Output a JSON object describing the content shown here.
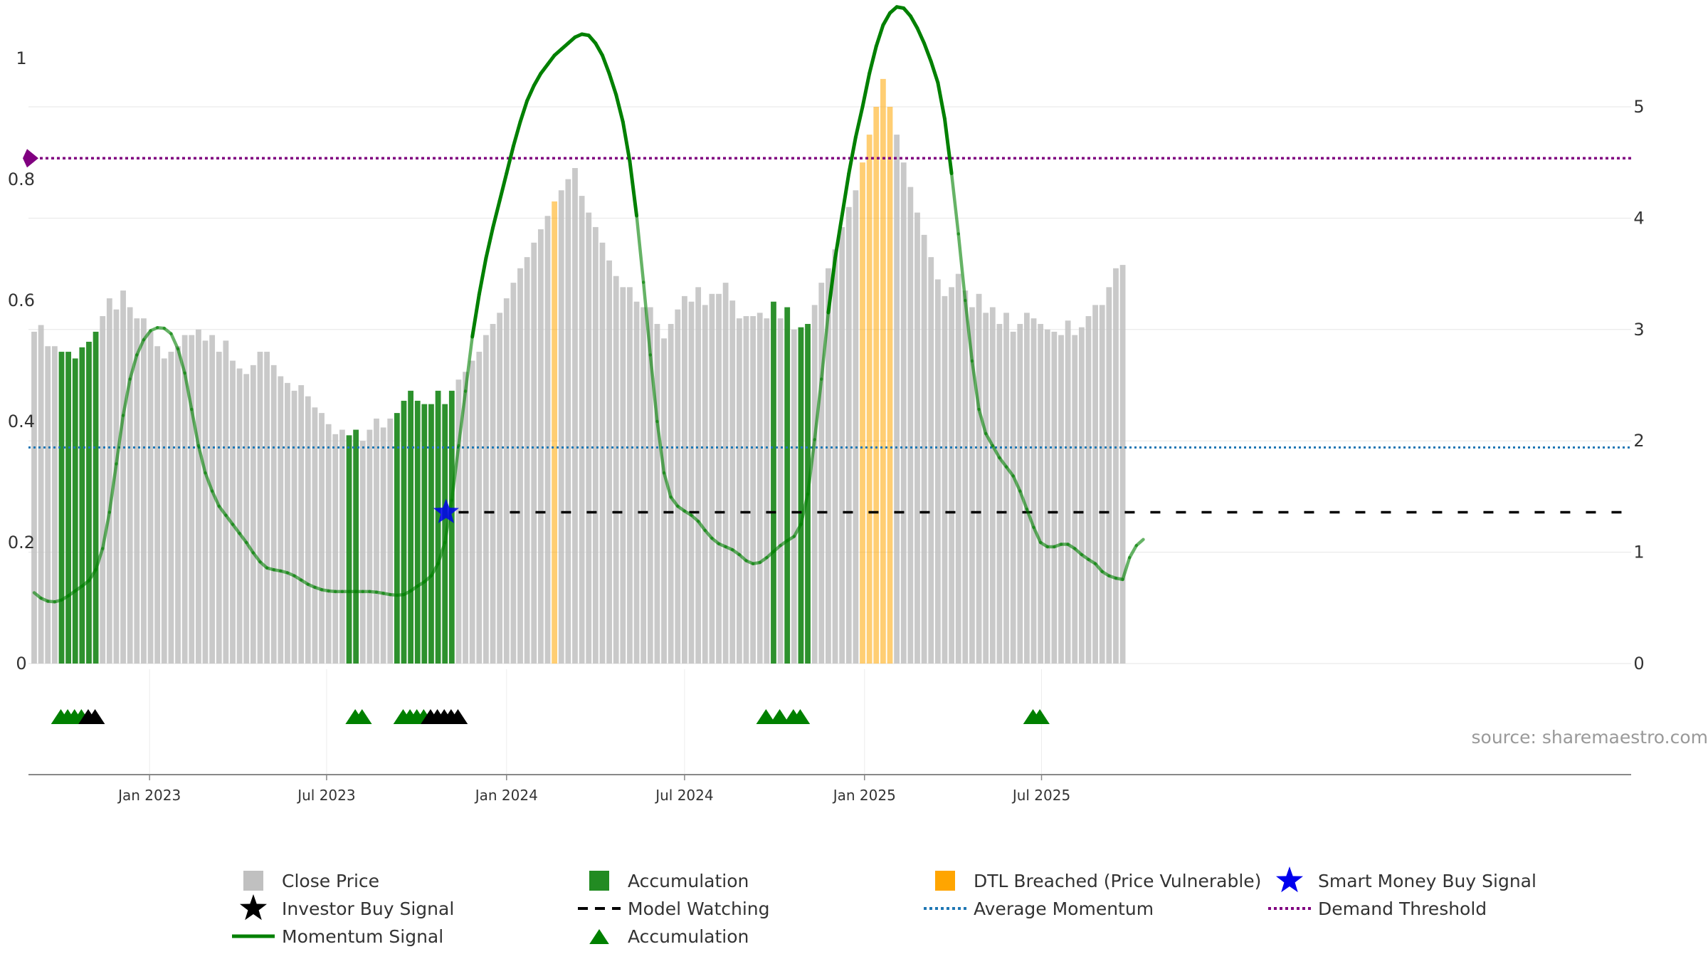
{
  "chart_data": {
    "type": "bar",
    "x_start": "2022-09-05",
    "x_step_days": 7,
    "close_price": [
      2.98,
      3.04,
      2.85,
      2.85,
      2.8,
      2.8,
      2.74,
      2.84,
      2.89,
      2.98,
      3.12,
      3.28,
      3.18,
      3.35,
      3.2,
      3.1,
      3.1,
      2.98,
      2.85,
      2.74,
      2.8,
      2.85,
      2.95,
      2.95,
      3.0,
      2.9,
      2.95,
      2.8,
      2.9,
      2.72,
      2.65,
      2.6,
      2.68,
      2.8,
      2.8,
      2.68,
      2.58,
      2.52,
      2.45,
      2.5,
      2.4,
      2.3,
      2.25,
      2.15,
      2.06,
      2.1,
      2.05,
      2.1,
      2.0,
      2.1,
      2.2,
      2.12,
      2.2,
      2.25,
      2.36,
      2.45,
      2.36,
      2.33,
      2.33,
      2.45,
      2.33,
      2.45,
      2.55,
      2.62,
      2.72,
      2.8,
      2.95,
      3.05,
      3.15,
      3.28,
      3.42,
      3.55,
      3.65,
      3.78,
      3.9,
      4.02,
      4.15,
      4.25,
      4.35,
      4.45,
      4.2,
      4.05,
      3.92,
      3.78,
      3.62,
      3.48,
      3.38,
      3.38,
      3.25,
      3.2,
      3.2,
      3.05,
      2.92,
      3.05,
      3.18,
      3.3,
      3.25,
      3.38,
      3.22,
      3.32,
      3.32,
      3.42,
      3.26,
      3.1,
      3.12,
      3.12,
      3.15,
      3.1,
      3.25,
      3.1,
      3.2,
      3.0,
      3.02,
      3.05,
      3.22,
      3.42,
      3.55,
      3.72,
      3.92,
      4.1,
      4.25,
      4.5,
      4.75,
      5.0,
      5.25,
      5.0,
      4.75,
      4.5,
      4.28,
      4.05,
      3.85,
      3.65,
      3.45,
      3.3,
      3.38,
      3.5,
      3.35,
      3.2,
      3.32,
      3.15,
      3.2,
      3.05,
      3.15,
      2.98,
      3.05,
      3.15,
      3.1,
      3.05,
      3.0,
      2.98,
      2.95,
      3.08,
      2.95,
      3.02,
      3.12,
      3.22,
      3.22,
      3.38,
      3.55,
      3.58
    ],
    "bar_state": [
      0,
      0,
      0,
      0,
      1,
      1,
      1,
      1,
      1,
      1,
      0,
      0,
      0,
      0,
      0,
      0,
      0,
      0,
      0,
      0,
      0,
      0,
      0,
      0,
      0,
      0,
      0,
      0,
      0,
      0,
      0,
      0,
      0,
      0,
      0,
      0,
      0,
      0,
      0,
      0,
      0,
      0,
      0,
      0,
      0,
      0,
      1,
      1,
      0,
      0,
      0,
      0,
      0,
      1,
      1,
      1,
      1,
      1,
      1,
      1,
      1,
      1,
      0,
      0,
      0,
      0,
      0,
      0,
      0,
      0,
      0,
      0,
      0,
      0,
      0,
      0,
      2,
      0,
      0,
      0,
      0,
      0,
      0,
      0,
      0,
      0,
      0,
      0,
      0,
      0,
      0,
      0,
      0,
      0,
      0,
      0,
      0,
      0,
      0,
      0,
      0,
      0,
      0,
      0,
      0,
      0,
      0,
      0,
      1,
      0,
      1,
      0,
      1,
      1,
      0,
      0,
      0,
      0,
      0,
      0,
      0,
      2,
      2,
      2,
      2,
      2,
      0,
      0,
      0,
      0,
      0,
      0,
      0,
      0,
      0,
      0,
      0,
      0,
      0,
      0,
      0,
      0,
      0,
      0,
      0,
      0,
      0,
      0,
      0,
      0,
      0,
      0,
      0,
      0,
      0,
      0,
      0,
      0
    ],
    "bar_state_legend": {
      "0": "Close Price",
      "1": "Accumulation",
      "2": "DTL Breached (Price Vulnerable)"
    },
    "momentum": [
      0.117,
      0.108,
      0.103,
      0.102,
      0.105,
      0.112,
      0.12,
      0.128,
      0.137,
      0.155,
      0.19,
      0.25,
      0.33,
      0.41,
      0.47,
      0.51,
      0.535,
      0.55,
      0.555,
      0.554,
      0.545,
      0.52,
      0.48,
      0.42,
      0.36,
      0.315,
      0.285,
      0.26,
      0.245,
      0.23,
      0.215,
      0.2,
      0.183,
      0.168,
      0.158,
      0.155,
      0.153,
      0.15,
      0.145,
      0.138,
      0.131,
      0.126,
      0.122,
      0.12,
      0.119,
      0.119,
      0.119,
      0.119,
      0.119,
      0.119,
      0.118,
      0.116,
      0.114,
      0.113,
      0.114,
      0.12,
      0.128,
      0.135,
      0.145,
      0.165,
      0.2,
      0.27,
      0.36,
      0.45,
      0.54,
      0.61,
      0.67,
      0.72,
      0.765,
      0.81,
      0.855,
      0.895,
      0.93,
      0.955,
      0.975,
      0.99,
      1.005,
      1.015,
      1.025,
      1.035,
      1.04,
      1.038,
      1.025,
      1.005,
      0.975,
      0.94,
      0.895,
      0.83,
      0.74,
      0.63,
      0.51,
      0.4,
      0.315,
      0.275,
      0.26,
      0.252,
      0.245,
      0.235,
      0.22,
      0.207,
      0.198,
      0.193,
      0.188,
      0.18,
      0.17,
      0.165,
      0.167,
      0.175,
      0.185,
      0.195,
      0.203,
      0.21,
      0.23,
      0.28,
      0.37,
      0.47,
      0.58,
      0.67,
      0.74,
      0.81,
      0.87,
      0.92,
      0.975,
      1.02,
      1.055,
      1.075,
      1.085,
      1.083,
      1.07,
      1.05,
      1.025,
      0.995,
      0.96,
      0.9,
      0.81,
      0.71,
      0.6,
      0.5,
      0.42,
      0.38,
      0.36,
      0.34,
      0.325,
      0.31,
      0.285,
      0.255,
      0.225,
      0.2,
      0.193,
      0.193,
      0.197,
      0.197,
      0.19,
      0.18,
      0.172,
      0.165,
      0.152,
      0.145,
      0.141,
      0.139,
      0.175,
      0.195,
      0.205
    ],
    "momentum_strong": [
      false,
      false,
      false,
      false,
      false,
      false,
      false,
      false,
      false,
      false,
      false,
      false,
      false,
      false,
      false,
      false,
      false,
      false,
      false,
      false,
      false,
      false,
      false,
      false,
      false,
      false,
      false,
      false,
      false,
      false,
      false,
      false,
      false,
      false,
      false,
      false,
      false,
      false,
      false,
      false,
      false,
      false,
      false,
      false,
      false,
      false,
      false,
      false,
      false,
      false,
      false,
      false,
      false,
      false,
      false,
      false,
      false,
      false,
      false,
      false,
      false,
      false,
      false,
      false,
      true,
      true,
      true,
      true,
      true,
      true,
      true,
      true,
      true,
      true,
      true,
      true,
      true,
      true,
      true,
      true,
      true,
      true,
      true,
      true,
      true,
      true,
      true,
      true,
      true,
      false,
      false,
      false,
      false,
      false,
      false,
      false,
      false,
      false,
      false,
      false,
      false,
      false,
      false,
      false,
      false,
      false,
      false,
      false,
      false,
      false,
      false,
      false,
      false,
      false,
      false,
      false,
      true,
      true,
      true,
      true,
      true,
      true,
      true,
      true,
      true,
      true,
      true,
      true,
      true,
      true,
      true,
      true,
      true,
      true,
      true,
      false,
      false,
      false,
      false,
      false,
      false,
      false,
      false,
      false,
      false,
      false,
      false,
      false,
      false,
      false,
      false,
      false,
      false,
      false,
      false,
      false,
      false,
      false,
      false,
      false,
      false
    ],
    "smart_money_buy": {
      "index": 61,
      "value": 0.25
    },
    "model_watching": {
      "start_index": 62,
      "value": 0.25
    },
    "average_momentum": 0.357,
    "demand_threshold": 0.835,
    "accumulation_markers": [
      4,
      5,
      6,
      7,
      47,
      48,
      54,
      55,
      56,
      57,
      107,
      109,
      111,
      112,
      146,
      147
    ],
    "investor_buy_markers": [
      8,
      9,
      58,
      59,
      60,
      61,
      62
    ],
    "y_left": {
      "min": 0,
      "max": 1,
      "ticks": [
        "0",
        "0.2",
        "0.4",
        "0.6",
        "0.8",
        "1"
      ]
    },
    "y_right": {
      "min": 0,
      "max": 5,
      "ticks": [
        "0",
        "1",
        "2",
        "3",
        "4",
        "5"
      ]
    },
    "x_ticks": [
      {
        "label": "Jan 2023",
        "date": "2023-01-01"
      },
      {
        "label": "Jul 2023",
        "date": "2023-07-01"
      },
      {
        "label": "Jan 2024",
        "date": "2024-01-01"
      },
      {
        "label": "Jul 2024",
        "date": "2024-07-01"
      },
      {
        "label": "Jan 2025",
        "date": "2025-01-01"
      },
      {
        "label": "Jul 2025",
        "date": "2025-07-01"
      }
    ],
    "legend": [
      {
        "label": "Close Price",
        "symbol": "square",
        "color": "#c0c0c0"
      },
      {
        "label": "Accumulation",
        "symbol": "square",
        "color": "#228b22"
      },
      {
        "label": "DTL Breached (Price Vulnerable)",
        "symbol": "square",
        "color": "#ffa500"
      },
      {
        "label": "Smart Money Buy Signal",
        "symbol": "star",
        "color": "#0000ee"
      },
      {
        "label": "Investor Buy Signal",
        "symbol": "star",
        "color": "#000000"
      },
      {
        "label": "Model Watching",
        "symbol": "dash",
        "color": "#000000"
      },
      {
        "label": "Average Momentum",
        "symbol": "dot",
        "color": "#1f77b4"
      },
      {
        "label": "Demand Threshold",
        "symbol": "dot",
        "color": "#800080"
      },
      {
        "label": "Momentum Signal",
        "symbol": "line",
        "color": "#008000"
      },
      {
        "label": "Accumulation",
        "symbol": "triangle",
        "color": "#008000"
      }
    ],
    "source": "source: sharemaestro.com",
    "colors": {
      "close": "#c0c0c0",
      "accumulation": "#228b22",
      "dtl": "#ffa500",
      "momentum": "#008000",
      "average": "#1f77b4",
      "threshold": "#800080",
      "smart_money": "#0000ee",
      "investor": "#000000"
    }
  }
}
